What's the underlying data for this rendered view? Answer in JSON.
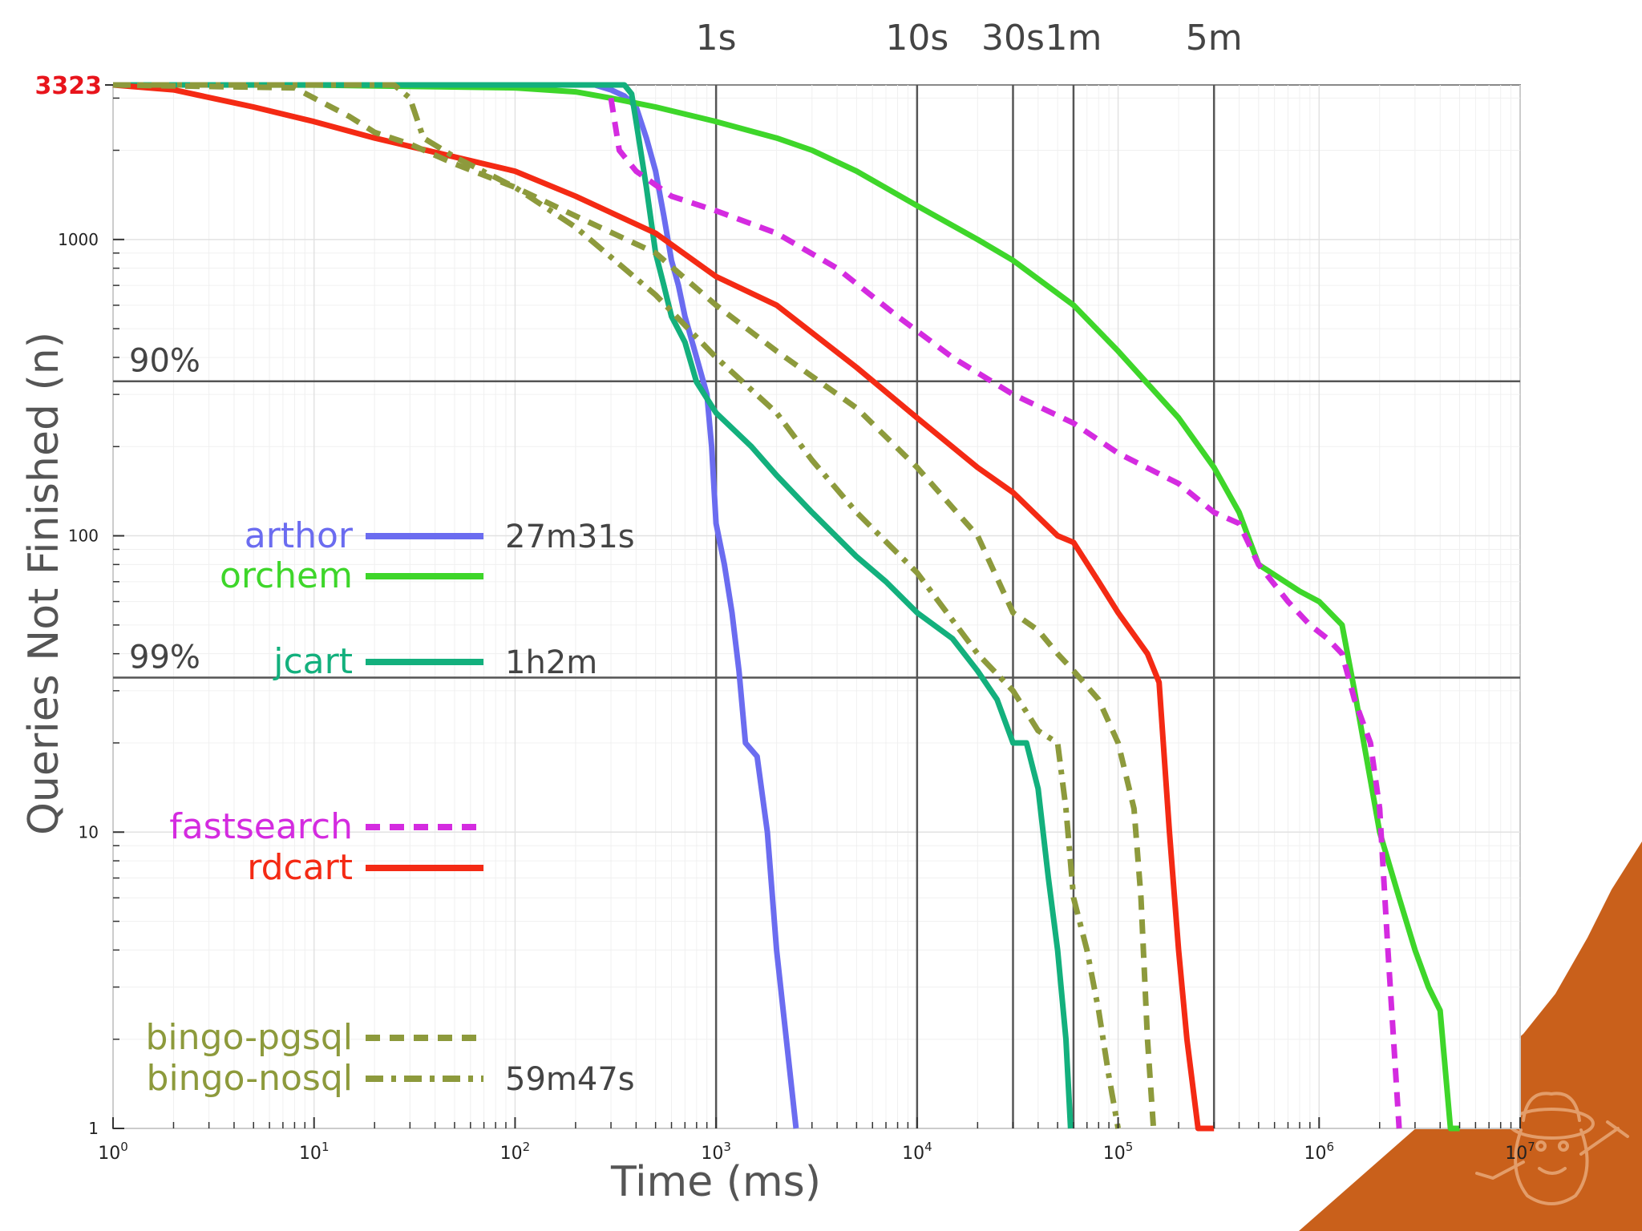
{
  "chart_data": {
    "type": "line",
    "xlabel": "Time (ms)",
    "ylabel": "Queries Not Finished (n)",
    "x_scale": "log",
    "y_scale": "log",
    "xlim": [
      1,
      10000000
    ],
    "ylim": [
      1,
      3323
    ],
    "x_ticks": [
      {
        "value": 1,
        "base": "10",
        "exp": "0"
      },
      {
        "value": 10,
        "base": "10",
        "exp": "1"
      },
      {
        "value": 100,
        "base": "10",
        "exp": "2"
      },
      {
        "value": 1000,
        "base": "10",
        "exp": "3"
      },
      {
        "value": 10000,
        "base": "10",
        "exp": "4"
      },
      {
        "value": 100000,
        "base": "10",
        "exp": "5"
      },
      {
        "value": 1000000,
        "base": "10",
        "exp": "6"
      },
      {
        "value": 10000000,
        "base": "10",
        "exp": "7"
      }
    ],
    "y_ticks": [
      {
        "value": 1,
        "label": "1"
      },
      {
        "value": 10,
        "label": "10"
      },
      {
        "value": 100,
        "label": "100"
      },
      {
        "value": 1000,
        "label": "1000"
      }
    ],
    "y_max_label": {
      "value": 3323,
      "label": "3323",
      "color": "#e8141c"
    },
    "time_markers": [
      {
        "label": "1s",
        "x": 1000
      },
      {
        "label": "10s",
        "x": 10000
      },
      {
        "label": "30s",
        "x": 30000
      },
      {
        "label": "1m",
        "x": 60000
      },
      {
        "label": "5m",
        "x": 300000
      }
    ],
    "percent_markers": [
      {
        "label": "90%",
        "y": 332.3
      },
      {
        "label": "99%",
        "y": 33.23
      }
    ],
    "grid": true,
    "legend_position": "left",
    "series": [
      {
        "name": "arthor",
        "color": "#6b6cf0",
        "dash": "solid",
        "time": "27m31s",
        "x": [
          1,
          250,
          300,
          350,
          400,
          450,
          500,
          550,
          600,
          650,
          700,
          800,
          900,
          950,
          1000,
          1100,
          1200,
          1300,
          1400,
          1600,
          1800,
          2000,
          2500
        ],
        "y": [
          3323,
          3323,
          3200,
          3050,
          2800,
          2200,
          1700,
          1200,
          850,
          700,
          550,
          400,
          300,
          200,
          110,
          80,
          55,
          35,
          20,
          18,
          10,
          4,
          1
        ]
      },
      {
        "name": "orchem",
        "color": "#3ed62a",
        "dash": "solid",
        "time": "",
        "x": [
          1,
          10,
          100,
          200,
          300,
          500,
          1000,
          2000,
          3000,
          5000,
          10000,
          20000,
          30000,
          60000,
          100000,
          200000,
          300000,
          400000,
          500000,
          800000,
          1000000,
          1300000,
          1500000,
          1800000,
          2000000,
          2500000,
          3000000,
          3500000,
          4000000,
          4500000,
          5000000
        ],
        "y": [
          3323,
          3320,
          3250,
          3150,
          3000,
          2800,
          2500,
          2200,
          2000,
          1700,
          1300,
          1000,
          850,
          600,
          420,
          250,
          170,
          120,
          80,
          65,
          60,
          50,
          30,
          15,
          10,
          6,
          4,
          3,
          2.5,
          1,
          1
        ]
      },
      {
        "name": "jcart",
        "color": "#13b07d",
        "dash": "solid",
        "time": "1h2m",
        "x": [
          1,
          350,
          380,
          400,
          450,
          500,
          550,
          600,
          700,
          800,
          1000,
          1500,
          2000,
          3000,
          5000,
          7000,
          10000,
          15000,
          20000,
          25000,
          30000,
          35000,
          40000,
          45000,
          50000,
          55000,
          58000
        ],
        "y": [
          3323,
          3323,
          3100,
          2500,
          1500,
          900,
          700,
          550,
          450,
          330,
          260,
          200,
          160,
          120,
          85,
          70,
          55,
          45,
          35,
          28,
          20,
          20,
          14,
          7,
          4,
          2,
          1
        ]
      },
      {
        "name": "fastsearch",
        "color": "#d42be0",
        "dash": "dashed",
        "time": "",
        "x": [
          300,
          330,
          400,
          600,
          1000,
          2000,
          4000,
          8000,
          15000,
          30000,
          60000,
          100000,
          200000,
          300000,
          400000,
          500000,
          700000,
          900000,
          1100000,
          1300000,
          1500000,
          1800000,
          2000000,
          2200000,
          2500000
        ],
        "y": [
          3000,
          2000,
          1700,
          1400,
          1250,
          1050,
          800,
          550,
          400,
          300,
          240,
          190,
          150,
          120,
          110,
          80,
          60,
          50,
          45,
          40,
          28,
          20,
          12,
          4,
          1
        ]
      },
      {
        "name": "rdcart",
        "color": "#f42a14",
        "dash": "solid",
        "time": "",
        "x": [
          1,
          2,
          5,
          10,
          20,
          50,
          100,
          200,
          500,
          1000,
          2000,
          5000,
          10000,
          20000,
          30000,
          50000,
          60000,
          80000,
          100000,
          140000,
          160000,
          180000,
          200000,
          220000,
          250000,
          300000
        ],
        "y": [
          3323,
          3200,
          2800,
          2500,
          2200,
          1900,
          1700,
          1400,
          1050,
          750,
          600,
          370,
          250,
          170,
          140,
          100,
          95,
          70,
          55,
          40,
          32,
          10,
          4,
          2,
          1,
          1
        ]
      },
      {
        "name": "bingo-pgsql",
        "color": "#8d9a3c",
        "dash": "dashed",
        "time": "",
        "x": [
          1,
          8,
          10,
          15,
          20,
          30,
          50,
          100,
          200,
          500,
          1000,
          2000,
          5000,
          10000,
          20000,
          30000,
          40000,
          50000,
          60000,
          80000,
          100000,
          120000,
          130000,
          140000,
          150000
        ],
        "y": [
          3323,
          3250,
          3000,
          2600,
          2300,
          2100,
          1800,
          1500,
          1200,
          900,
          600,
          420,
          270,
          170,
          100,
          55,
          48,
          40,
          35,
          28,
          20,
          12,
          6,
          2,
          1
        ]
      },
      {
        "name": "bingo-nosql",
        "color": "#8d9a3c",
        "dash": "dashdot",
        "time": "59m47s",
        "x": [
          1,
          25,
          30,
          35,
          50,
          100,
          200,
          500,
          1000,
          2000,
          3000,
          5000,
          10000,
          20000,
          30000,
          40000,
          50000,
          55000,
          60000,
          70000,
          80000,
          90000,
          100000
        ],
        "y": [
          3323,
          3323,
          3000,
          2200,
          1900,
          1500,
          1100,
          650,
          400,
          260,
          180,
          120,
          75,
          40,
          30,
          22,
          20,
          12,
          6,
          4,
          2.5,
          1.5,
          1
        ]
      }
    ]
  }
}
